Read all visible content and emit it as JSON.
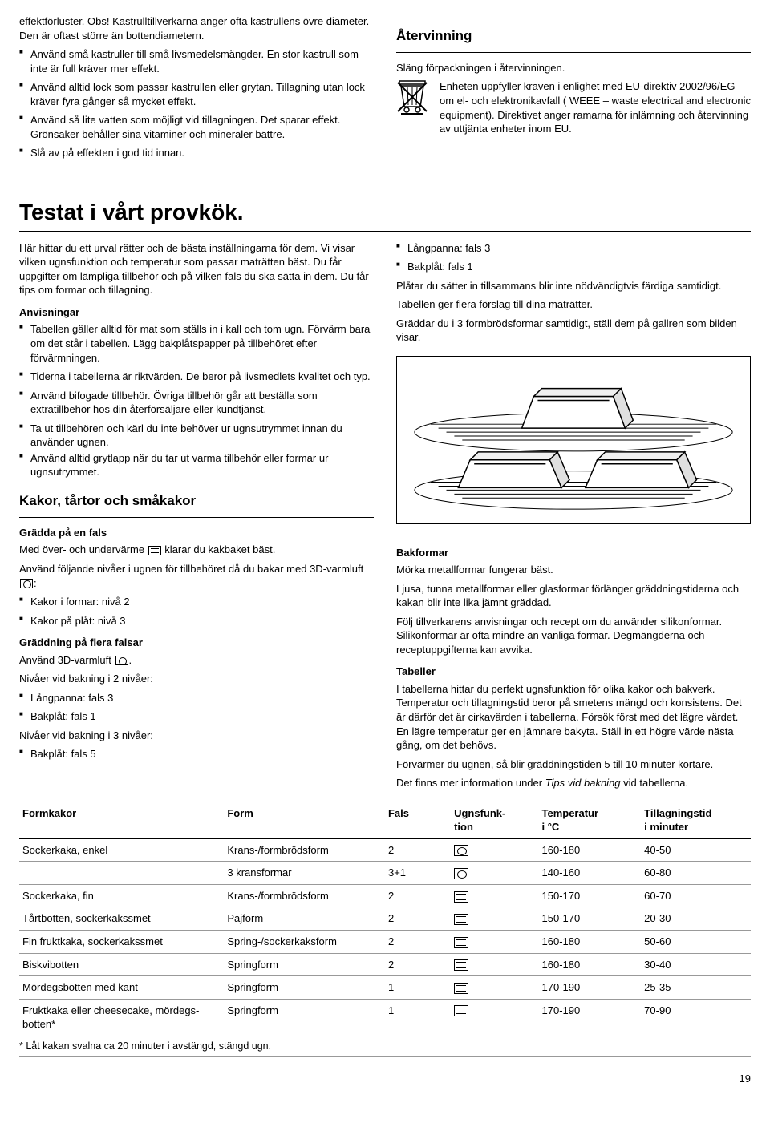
{
  "topLeft": {
    "intro": "effektförluster. Obs! Kastrulltillverkarna anger ofta kastrullens övre diameter. Den är oftast större än bottendiametern.",
    "bullets": [
      "Använd små kastruller till små livsmedelsmängder. En stor kastrull som inte är full kräver mer effekt.",
      "Använd alltid lock som passar kastrullen eller grytan. Tillagning utan lock kräver fyra gånger så mycket effekt.",
      "Använd så lite vatten som möjligt vid tillagningen. Det sparar effekt. Grönsaker behåller sina vitaminer och mineraler bättre.",
      "Slå av på effekten i god tid innan."
    ]
  },
  "topRight": {
    "heading": "Återvinning",
    "p1": "Släng förpackningen i återvinningen.",
    "weee": "Enheten uppfyller kraven i enlighet med EU-direktiv 2002/96/EG om el- och elektronikavfall ( WEEE – waste electrical and electronic equipment). Direktivet anger ramarna för inlämning och återvinning av uttjänta enheter inom EU."
  },
  "h1": "Testat i vårt provkök.",
  "midLeft": {
    "p1": "Här hittar du ett urval rätter och de bästa inställningarna för dem. Vi visar vilken ugnsfunktion och temperatur som passar maträtten bäst. Du får uppgifter om lämpliga tillbehör och på vilken fals du ska sätta in dem. Du får tips om formar och tillagning.",
    "anvisningar_h": "Anvisningar",
    "anvisningar": [
      "Tabellen gäller alltid för mat som ställs in i kall och tom ugn. Förvärm bara om det står i tabellen. Lägg bakplåtspapper på tillbehöret efter förvärmningen.",
      "Tiderna i tabellerna är riktvärden. De beror på livsmedlets kvalitet och typ.",
      "Använd bifogade tillbehör. Övriga tillbehör går att beställa som extratillbehör hos din återförsäljare eller kundtjänst.",
      "Ta ut tillbehören och kärl du inte behöver ur ugnsutrymmet innan du använder ugnen.",
      "Använd alltid grytlapp när du tar ut varma tillbehör eller formar ur ugnsutrymmet."
    ],
    "kakor_h": "Kakor, tårtor och småkakor",
    "gradda_h": "Grädda på en fals",
    "gradda_p1a": "Med över- och undervärme ",
    "gradda_p1b": " klarar du kakbaket bäst.",
    "gradda_p2a": "Använd följande nivåer i ugnen för tillbehöret då du bakar med 3D-varmluft ",
    "gradda_p2b": ":",
    "gradda_list": [
      "Kakor i formar: nivå 2",
      "Kakor på plåt: nivå 3"
    ],
    "flera_h": "Gräddning på flera falsar",
    "flera_p1a": "Använd 3D-varmluft ",
    "flera_p1b": ".",
    "flera_p2": "Nivåer vid bakning i 2 nivåer:",
    "flera_list2": [
      "Långpanna: fals 3",
      "Bakplåt: fals 1"
    ],
    "flera_p3": "Nivåer vid bakning i 3 nivåer:",
    "flera_list3": [
      "Bakplåt: fals 5"
    ]
  },
  "midRight": {
    "topList": [
      "Långpanna: fals 3",
      "Bakplåt: fals 1"
    ],
    "p1": "Plåtar du sätter in tillsammans blir inte nödvändigtvis färdiga samtidigt.",
    "p2": "Tabellen ger flera förslag till dina maträtter.",
    "p3": "Gräddar du i 3 formbrödsformar samtidigt, ställ dem på gallren som bilden visar.",
    "bakformar_h": "Bakformar",
    "bakformar_p1": "Mörka metallformar fungerar bäst.",
    "bakformar_p2": "Ljusa, tunna metallformar eller glasformar förlänger gräddningstiderna och kakan blir inte lika jämnt gräddad.",
    "bakformar_p3": "Följ tillverkarens anvisningar och recept om du använder silikonformar. Silikonformar är ofta mindre än vanliga formar. Degmängderna och receptuppgifterna kan avvika.",
    "tabeller_h": "Tabeller",
    "tabeller_p1": "I tabellerna hittar du perfekt ugnsfunktion för olika kakor och bakverk. Temperatur och tillagningstid beror på smetens mängd och konsistens. Det är därför det är cirkavärden i tabellerna. Försök först med det lägre värdet. En lägre temperatur ger en jämnare bakyta. Ställ in ett högre värde nästa gång, om det behövs.",
    "tabeller_p2": "Förvärmer du ugnen, så blir gräddningstiden 5 till 10 minuter kortare.",
    "tabeller_p3a": "Det finns mer information under ",
    "tabeller_p3b": "Tips vid bakning",
    "tabeller_p3c": " vid tabellerna."
  },
  "table": {
    "headers": [
      "Formkakor",
      "Form",
      "Fals",
      "Ugnsfunk-\ntion",
      "Temperatur\ni °C",
      "Tillagningstid\ni minuter"
    ],
    "rows": [
      {
        "c0": "Sockerkaka, enkel",
        "c1": "Krans-/formbrödsform",
        "c2": "2",
        "icon": "fan",
        "c4": "160-180",
        "c5": "40-50"
      },
      {
        "c0": "",
        "c1": "3 kransformar",
        "c2": "3+1",
        "icon": "fan",
        "c4": "140-160",
        "c5": "60-80"
      },
      {
        "c0": "Sockerkaka, fin",
        "c1": "Krans-/formbrödsform",
        "c2": "2",
        "icon": "tb",
        "c4": "150-170",
        "c5": "60-70"
      },
      {
        "c0": "Tårtbotten, sockerkakssmet",
        "c1": "Pajform",
        "c2": "2",
        "icon": "tb",
        "c4": "150-170",
        "c5": "20-30"
      },
      {
        "c0": "Fin fruktkaka, sockerkakssmet",
        "c1": "Spring-/sockerkaksform",
        "c2": "2",
        "icon": "tb",
        "c4": "160-180",
        "c5": "50-60"
      },
      {
        "c0": "Biskvibotten",
        "c1": "Springform",
        "c2": "2",
        "icon": "tb",
        "c4": "160-180",
        "c5": "30-40"
      },
      {
        "c0": "Mördegsbotten med kant",
        "c1": "Springform",
        "c2": "1",
        "icon": "tb",
        "c4": "170-190",
        "c5": "25-35"
      },
      {
        "c0": "Fruktkaka eller cheesecake, mördegs-\nbotten*",
        "c1": "Springform",
        "c2": "1",
        "icon": "tb",
        "c4": "170-190",
        "c5": "70-90"
      }
    ],
    "footnote": "* Låt kakan svalna ca 20 minuter i avstängd, stängd ugn."
  },
  "pageNum": "19"
}
